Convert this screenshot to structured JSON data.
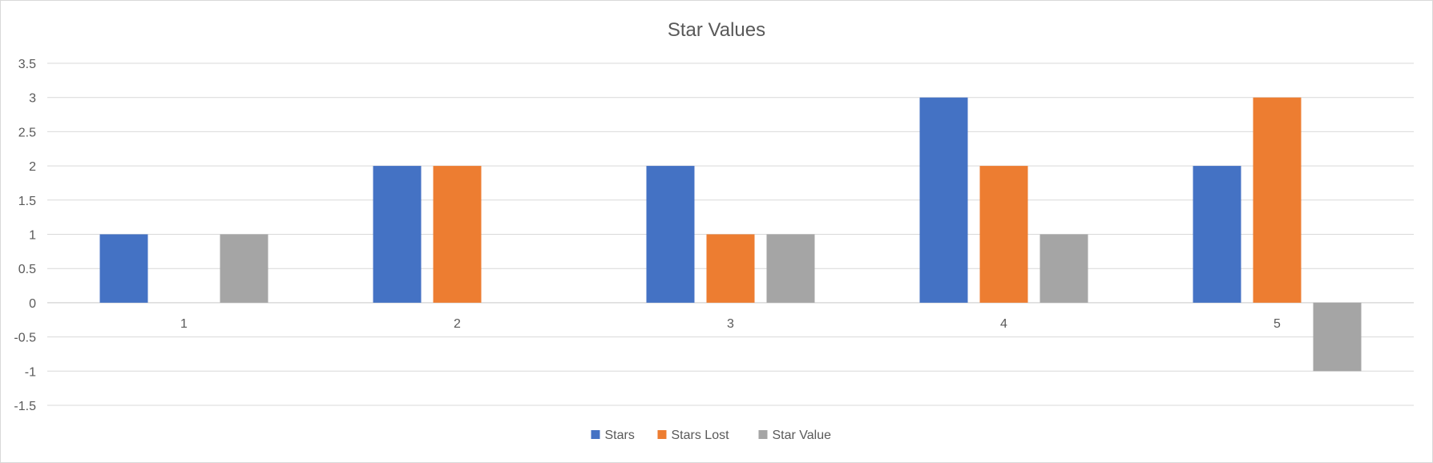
{
  "chart_data": {
    "type": "bar",
    "title": "Star Values",
    "xlabel": "",
    "ylabel": "",
    "categories": [
      "1",
      "2",
      "3",
      "4",
      "5"
    ],
    "series": [
      {
        "name": "Stars",
        "color": "#4472c4",
        "values": [
          1,
          2,
          2,
          3,
          2
        ]
      },
      {
        "name": "Stars Lost",
        "color": "#ed7d31",
        "values": [
          0,
          2,
          1,
          2,
          3
        ]
      },
      {
        "name": "Star Value",
        "color": "#a5a5a5",
        "values": [
          1,
          0,
          1,
          1,
          -1
        ]
      }
    ],
    "ylim": [
      -1.5,
      3.5
    ],
    "yticks": [
      "3.5",
      "3",
      "2.5",
      "2",
      "1.5",
      "1",
      "0.5",
      "0",
      "-0.5",
      "-1",
      "-1.5"
    ],
    "grid": true,
    "legend_position": "bottom"
  }
}
